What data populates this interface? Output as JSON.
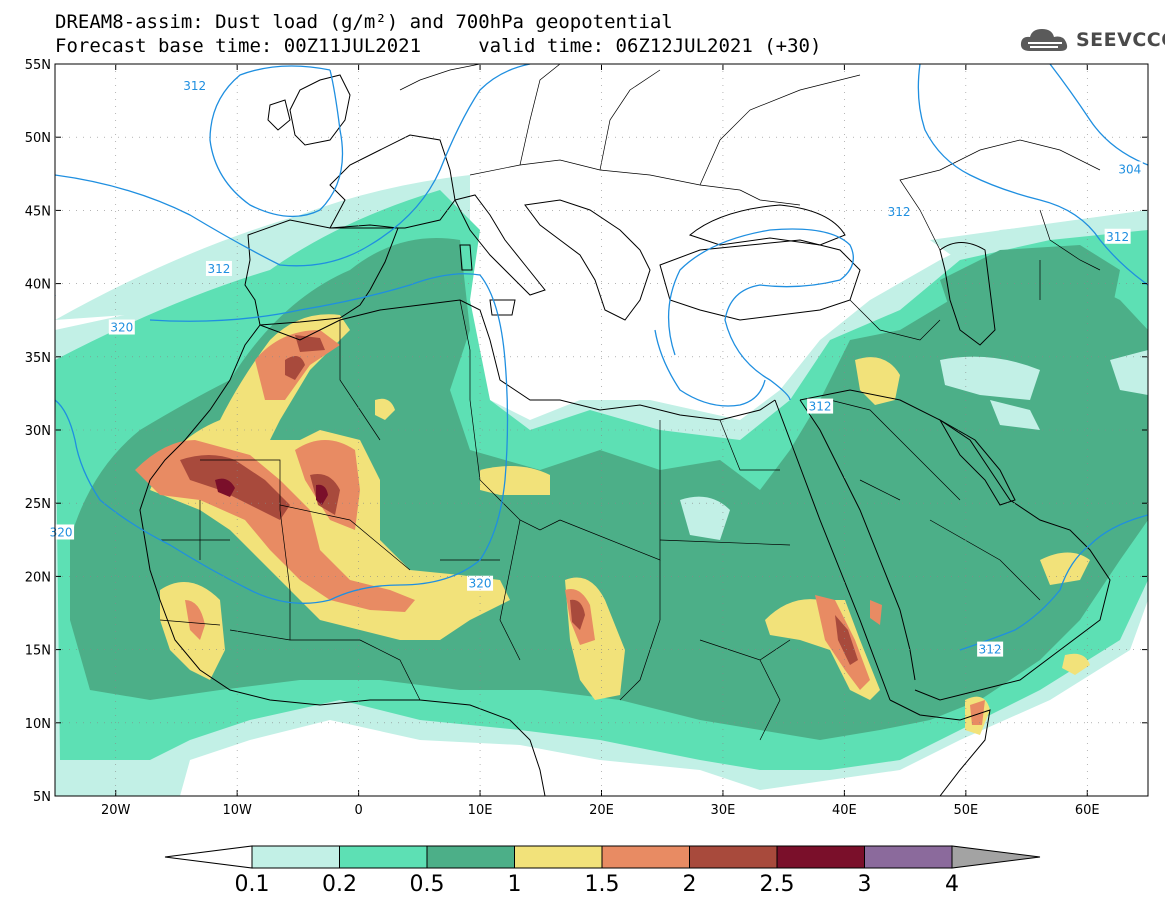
{
  "title_line1": "DREAM8-assim: Dust load (g/m²) and 700hPa geopotential",
  "title_line2": "Forecast base time: 00Z11JUL2021     valid time: 06Z12JUL2021 (+30)",
  "logo_text": "SEEVCCC",
  "lat_labels": [
    "55N",
    "50N",
    "45N",
    "40N",
    "35N",
    "30N",
    "25N",
    "20N",
    "15N",
    "10N",
    "5N"
  ],
  "lon_labels": [
    "20W",
    "10W",
    "0",
    "10E",
    "20E",
    "30E",
    "40E",
    "50E",
    "60E"
  ],
  "contour_labels": [
    {
      "text": "312",
      "lon": -13.5,
      "lat": 53.5
    },
    {
      "text": "304",
      "lon": 63.5,
      "lat": 47.8
    },
    {
      "text": "312",
      "lon": 44.5,
      "lat": 44.9
    },
    {
      "text": "312",
      "lon": 62.5,
      "lat": 43.2
    },
    {
      "text": "312",
      "lon": -11.5,
      "lat": 41.0
    },
    {
      "text": "320",
      "lon": -19.5,
      "lat": 37.0
    },
    {
      "text": "312",
      "lon": 38.0,
      "lat": 31.6
    },
    {
      "text": "320",
      "lon": -24.5,
      "lat": 23.0
    },
    {
      "text": "320",
      "lon": 10.0,
      "lat": 19.5
    },
    {
      "text": "312",
      "lon": 52.0,
      "lat": 15.0
    }
  ],
  "colorbar": {
    "ticks": [
      "0.1",
      "0.2",
      "0.5",
      "1",
      "1.5",
      "2",
      "2.5",
      "3",
      "4"
    ],
    "colors": [
      "#c2f0e6",
      "#5de0b4",
      "#4caf88",
      "#f2e27a",
      "#e88b63",
      "#a84a3c",
      "#7a0f2a",
      "#8b6a9c",
      "#a3a3a3"
    ]
  },
  "colors": {
    "dust_01": "#c2f0e6",
    "dust_02": "#5de0b4",
    "dust_05": "#4caf88",
    "dust_1": "#f2e27a",
    "dust_15": "#e88b63",
    "dust_2": "#a84a3c",
    "dust_25": "#7a0f2a",
    "contour": "#1f8fe0"
  }
}
